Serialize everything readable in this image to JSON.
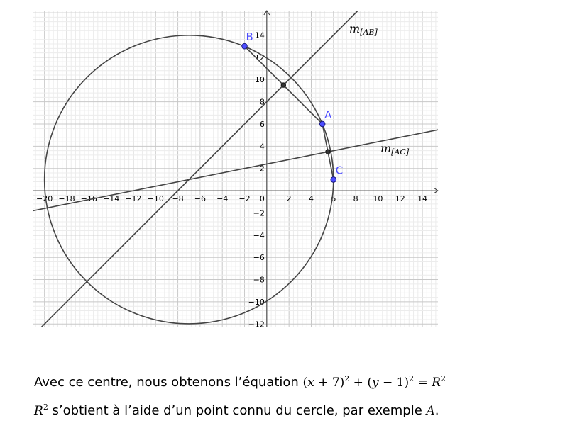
{
  "chart_data": {
    "type": "geometry",
    "xlim": [
      -21,
      15.4
    ],
    "ylim": [
      -12.3,
      16.2
    ],
    "grid": true,
    "x_ticks": [
      -20,
      -18,
      -16,
      -14,
      -12,
      -10,
      -8,
      -6,
      -4,
      -2,
      2,
      4,
      6,
      8,
      10,
      12,
      14
    ],
    "y_ticks": [
      -12,
      -10,
      -8,
      -6,
      -4,
      -2,
      2,
      4,
      6,
      8,
      10,
      12,
      14
    ],
    "origin_label": "0",
    "circle": {
      "center": [
        -7,
        1
      ],
      "radius": 13,
      "color": "#444444"
    },
    "points": [
      {
        "label": "A",
        "x": 5,
        "y": 6,
        "color": "#4d4dff"
      },
      {
        "label": "B",
        "x": -2,
        "y": 13,
        "color": "#4d4dff"
      },
      {
        "label": "C",
        "x": 6,
        "y": 1,
        "color": "#4d4dff"
      }
    ],
    "midpoints": [
      {
        "x": 1.5,
        "y": 9.5
      },
      {
        "x": 5.5,
        "y": 3.5
      }
    ],
    "segments": [
      {
        "from": [
          -2,
          13
        ],
        "to": [
          5,
          6
        ]
      },
      {
        "from": [
          5,
          6
        ],
        "to": [
          6,
          1
        ]
      }
    ],
    "lines": [
      {
        "label": "m",
        "sub": "[AB]",
        "slope": 1,
        "intercept": 8
      },
      {
        "label": "m",
        "sub": "[AC]",
        "slope": 0.2,
        "intercept": 2.4
      }
    ]
  },
  "text": {
    "line1_prefix": "Avec ce centre, nous obtenons l’équation ",
    "equation": {
      "p1": "(",
      "x": "x",
      "p2": " + 7)",
      "e1": "2",
      "plus": " + (",
      "y": "y",
      "p3": " − 1)",
      "e2": "2",
      "eq": " = ",
      "R": "R",
      "e3": "2"
    },
    "line2_R": "R",
    "line2_exp": "2",
    "line2_text": " s’obtient à l’aide d’un point connu du cercle, par exemple ",
    "line2_A": "A",
    "line2_end": "."
  }
}
